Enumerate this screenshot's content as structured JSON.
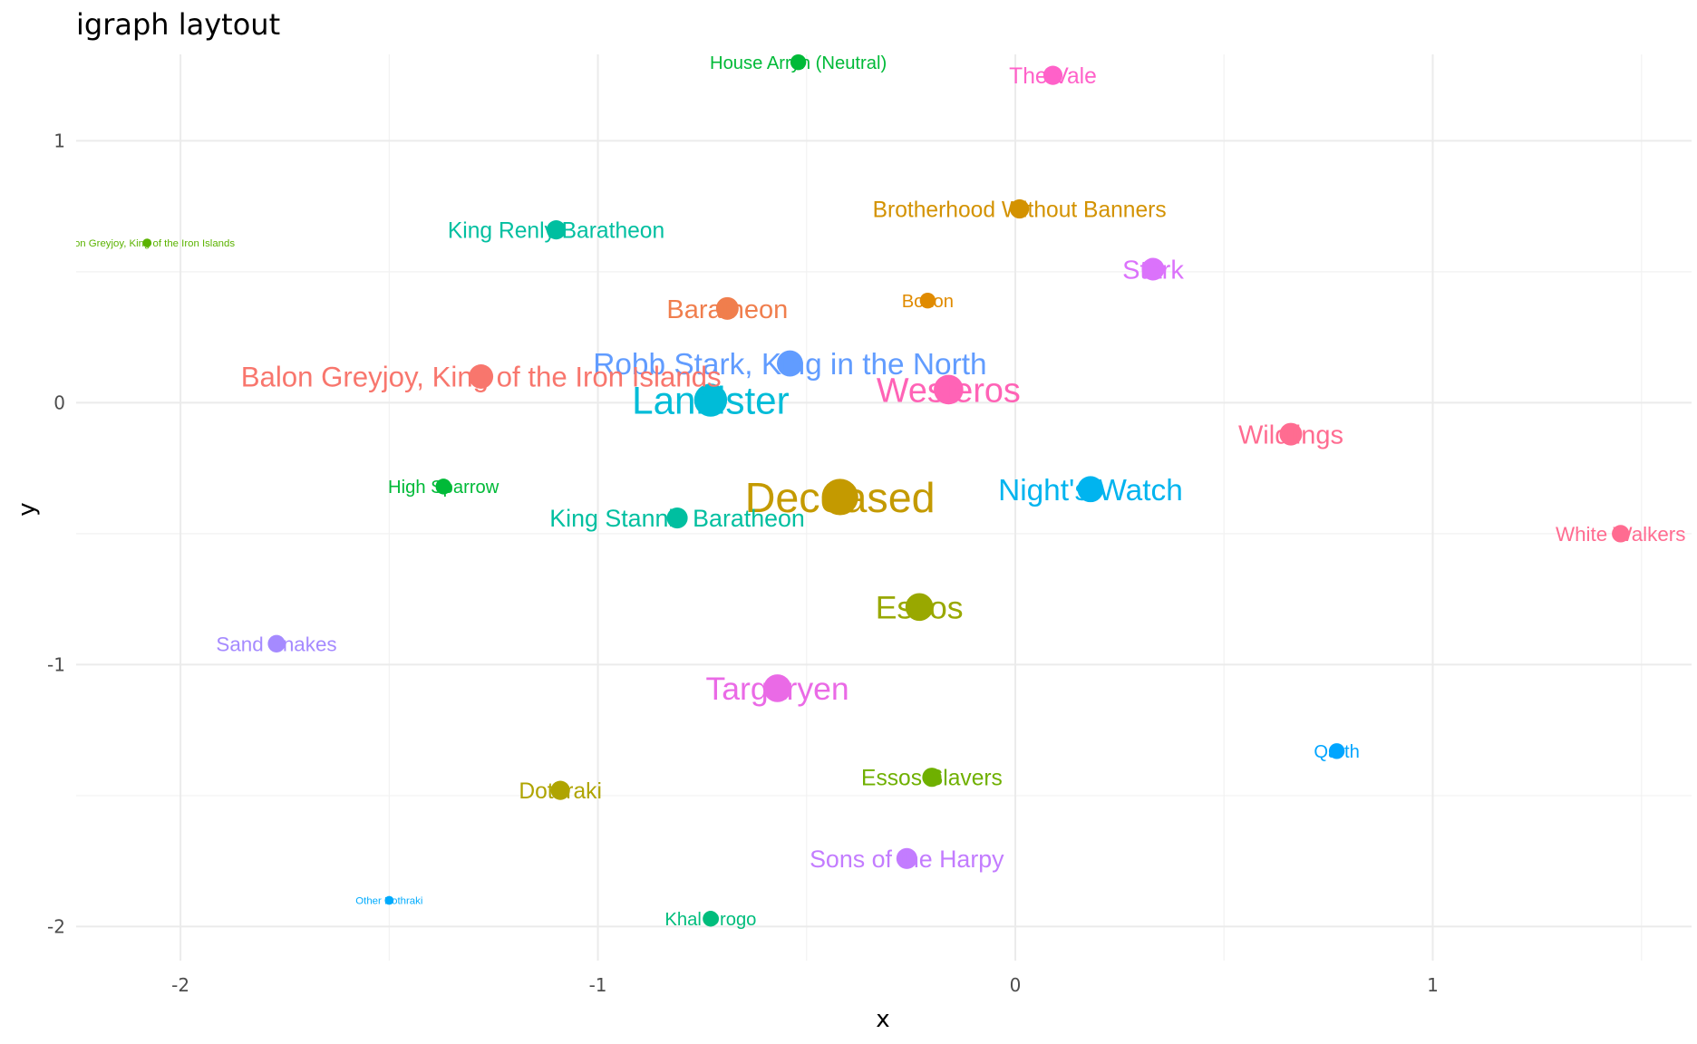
{
  "chart_data": {
    "type": "scatter",
    "title": "igraph laytout",
    "xlabel": "x",
    "ylabel": "y",
    "xlim": [
      -2.25,
      1.62
    ],
    "ylim": [
      -2.13,
      1.33
    ],
    "x_ticks": [
      -2,
      -1,
      0,
      1
    ],
    "y_ticks": [
      -2,
      -1,
      0,
      1
    ],
    "x_tick_labels": [
      "-2",
      "-1",
      "0",
      "1"
    ],
    "y_tick_labels": [
      "-2",
      "-1",
      "0",
      "1"
    ],
    "grid": true,
    "legend": "none",
    "points": [
      {
        "label": "House Arryn (Neutral)",
        "x": -0.52,
        "y": 1.3,
        "weight": 3,
        "color": "#00BA38"
      },
      {
        "label": "The Vale",
        "x": 0.09,
        "y": 1.25,
        "weight": 4,
        "color": "#FF61C9"
      },
      {
        "label": "Brotherhood Without Banners",
        "x": 0.01,
        "y": 0.74,
        "weight": 4,
        "color": "#D39200"
      },
      {
        "label": "King Renly Baratheon",
        "x": -1.1,
        "y": 0.66,
        "weight": 4,
        "color": "#00BFA0"
      },
      {
        "label": "Balon Greyjoy, King of the Iron Islands",
        "x": -2.08,
        "y": 0.61,
        "weight": 1,
        "color": "#5BB300"
      },
      {
        "label": "Stark",
        "x": 0.33,
        "y": 0.51,
        "weight": 5,
        "color": "#DB72FB"
      },
      {
        "label": "Bolton",
        "x": -0.21,
        "y": 0.39,
        "weight": 3,
        "color": "#E08B00"
      },
      {
        "label": "Baratheon",
        "x": -0.69,
        "y": 0.36,
        "weight": 5,
        "color": "#F07E4D"
      },
      {
        "label": "Robb Stark, King in the North",
        "x": -0.54,
        "y": 0.15,
        "weight": 6,
        "color": "#619CFF"
      },
      {
        "label": "Balon Greyjoy, King of the Iron Islands",
        "x": -1.28,
        "y": 0.1,
        "weight": 5.5,
        "color": "#F8766D"
      },
      {
        "label": "Lannister",
        "x": -0.73,
        "y": 0.01,
        "weight": 8,
        "color": "#00BCD8"
      },
      {
        "label": "Westeros",
        "x": -0.16,
        "y": 0.05,
        "weight": 7,
        "color": "#FF63B6"
      },
      {
        "label": "Wildlings",
        "x": 0.66,
        "y": -0.12,
        "weight": 5,
        "color": "#FF6C91"
      },
      {
        "label": "High Sparrow",
        "x": -1.37,
        "y": -0.32,
        "weight": 3,
        "color": "#00BA38"
      },
      {
        "label": "Deceased",
        "x": -0.42,
        "y": -0.36,
        "weight": 9,
        "color": "#C49A00"
      },
      {
        "label": "Night's Watch",
        "x": 0.18,
        "y": -0.33,
        "weight": 6,
        "color": "#00B4EF"
      },
      {
        "label": "King Stannis Baratheon",
        "x": -0.81,
        "y": -0.44,
        "weight": 4.5,
        "color": "#00BFA0"
      },
      {
        "label": "White Walkers",
        "x": 1.45,
        "y": -0.5,
        "weight": 3.5,
        "color": "#FF6C91"
      },
      {
        "label": "Essos",
        "x": -0.23,
        "y": -0.78,
        "weight": 6.5,
        "color": "#99A800"
      },
      {
        "label": "Sand Snakes",
        "x": -1.77,
        "y": -0.92,
        "weight": 3.5,
        "color": "#A58AFF"
      },
      {
        "label": "Targaryen",
        "x": -0.57,
        "y": -1.09,
        "weight": 6.5,
        "color": "#EA6AE6"
      },
      {
        "label": "Qarth",
        "x": 0.77,
        "y": -1.33,
        "weight": 3,
        "color": "#00A5FF"
      },
      {
        "label": "Essos Slavers",
        "x": -0.2,
        "y": -1.43,
        "weight": 4,
        "color": "#6FB000"
      },
      {
        "label": "Dothraki",
        "x": -1.09,
        "y": -1.48,
        "weight": 4,
        "color": "#AFA400"
      },
      {
        "label": "Sons of the Harpy",
        "x": -0.26,
        "y": -1.74,
        "weight": 4.5,
        "color": "#C37CFF"
      },
      {
        "label": "Other Dothraki",
        "x": -1.5,
        "y": -1.9,
        "weight": 1,
        "color": "#00ABFD"
      },
      {
        "label": "Khal Drogo",
        "x": -0.73,
        "y": -1.97,
        "weight": 3,
        "color": "#00BD7C"
      }
    ]
  }
}
